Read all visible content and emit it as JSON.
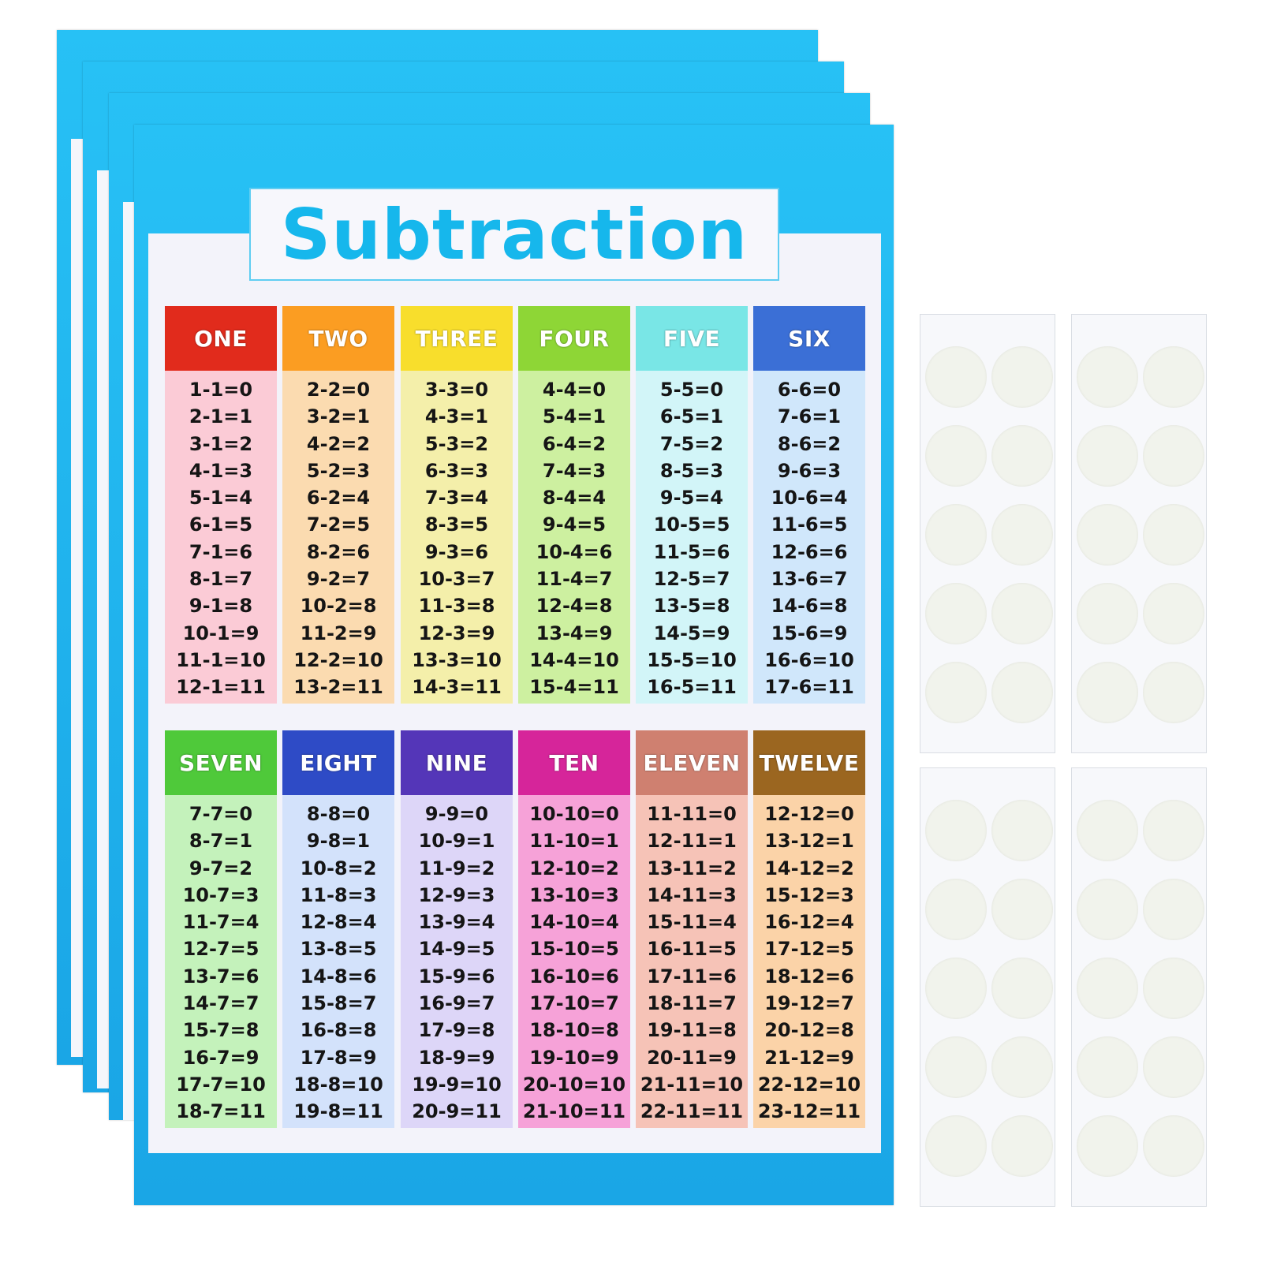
{
  "poster": {
    "title": "Subtraction",
    "frame_color": "#1fb3ee",
    "title_color": "#16b7ec",
    "columns": [
      {
        "label": "ONE",
        "header_color": "#e12b1c",
        "body_color": "#fbcbd6",
        "equations": [
          "1-1=0",
          "2-1=1",
          "3-1=2",
          "4-1=3",
          "5-1=4",
          "6-1=5",
          "7-1=6",
          "8-1=7",
          "9-1=8",
          "10-1=9",
          "11-1=10",
          "12-1=11"
        ]
      },
      {
        "label": "TWO",
        "header_color": "#fb9d22",
        "body_color": "#fbdbb0",
        "equations": [
          "2-2=0",
          "3-2=1",
          "4-2=2",
          "5-2=3",
          "6-2=4",
          "7-2=5",
          "8-2=6",
          "9-2=7",
          "10-2=8",
          "11-2=9",
          "12-2=10",
          "13-2=11"
        ]
      },
      {
        "label": "THREE",
        "header_color": "#f8de2c",
        "body_color": "#f4efaa",
        "equations": [
          "3-3=0",
          "4-3=1",
          "5-3=2",
          "6-3=3",
          "7-3=4",
          "8-3=5",
          "9-3=6",
          "10-3=7",
          "11-3=8",
          "12-3=9",
          "13-3=10",
          "14-3=11"
        ]
      },
      {
        "label": "FOUR",
        "header_color": "#8ed636",
        "body_color": "#cdf0a0",
        "equations": [
          "4-4=0",
          "5-4=1",
          "6-4=2",
          "7-4=3",
          "8-4=4",
          "9-4=5",
          "10-4=6",
          "11-4=7",
          "12-4=8",
          "13-4=9",
          "14-4=10",
          "15-4=11"
        ]
      },
      {
        "label": "FIVE",
        "header_color": "#79e6e6",
        "body_color": "#d2f5f8",
        "equations": [
          "5-5=0",
          "6-5=1",
          "7-5=2",
          "8-5=3",
          "9-5=4",
          "10-5=5",
          "11-5=6",
          "12-5=7",
          "13-5=8",
          "14-5=9",
          "15-5=10",
          "16-5=11"
        ]
      },
      {
        "label": "SIX",
        "header_color": "#3b6fd6",
        "body_color": "#d0e7fb",
        "equations": [
          "6-6=0",
          "7-6=1",
          "8-6=2",
          "9-6=3",
          "10-6=4",
          "11-6=5",
          "12-6=6",
          "13-6=7",
          "14-6=8",
          "15-6=9",
          "16-6=10",
          "17-6=11"
        ]
      },
      {
        "label": "SEVEN",
        "header_color": "#4fc93a",
        "body_color": "#c4f2bb",
        "equations": [
          "7-7=0",
          "8-7=1",
          "9-7=2",
          "10-7=3",
          "11-7=4",
          "12-7=5",
          "13-7=6",
          "14-7=7",
          "15-7=8",
          "16-7=9",
          "17-7=10",
          "18-7=11"
        ]
      },
      {
        "label": "EIGHT",
        "header_color": "#2e4bc6",
        "body_color": "#d3e2fb",
        "equations": [
          "8-8=0",
          "9-8=1",
          "10-8=2",
          "11-8=3",
          "12-8=4",
          "13-8=5",
          "14-8=6",
          "15-8=7",
          "16-8=8",
          "17-8=9",
          "18-8=10",
          "19-8=11"
        ]
      },
      {
        "label": "NINE",
        "header_color": "#5436b8",
        "body_color": "#ddd6f8",
        "equations": [
          "9-9=0",
          "10-9=1",
          "11-9=2",
          "12-9=3",
          "13-9=4",
          "14-9=5",
          "15-9=6",
          "16-9=7",
          "17-9=8",
          "18-9=9",
          "19-9=10",
          "20-9=11"
        ]
      },
      {
        "label": "TEN",
        "header_color": "#d6259a",
        "body_color": "#f6a2d8",
        "equations": [
          "10-10=0",
          "11-10=1",
          "12-10=2",
          "13-10=3",
          "14-10=4",
          "15-10=5",
          "16-10=6",
          "17-10=7",
          "18-10=8",
          "19-10=9",
          "20-10=10",
          "21-10=11"
        ]
      },
      {
        "label": "ELEVEN",
        "header_color": "#cf8070",
        "body_color": "#f6c3b7",
        "equations": [
          "11-11=0",
          "12-11=1",
          "13-11=2",
          "14-11=3",
          "15-11=4",
          "16-11=5",
          "17-11=6",
          "18-11=7",
          "19-11=8",
          "20-11=9",
          "21-11=10",
          "22-11=11"
        ]
      },
      {
        "label": "TWELVE",
        "header_color": "#9b6620",
        "body_color": "#fbd3a8",
        "equations": [
          "12-12=0",
          "13-12=1",
          "14-12=2",
          "15-12=3",
          "16-12=4",
          "17-12=5",
          "18-12=6",
          "19-12=7",
          "20-12=8",
          "21-12=9",
          "22-12=10",
          "23-12=11"
        ]
      }
    ]
  },
  "sticker_sheets": {
    "count": 4,
    "dots_per_sheet": 10,
    "dot_color": "#f1f3ec"
  }
}
